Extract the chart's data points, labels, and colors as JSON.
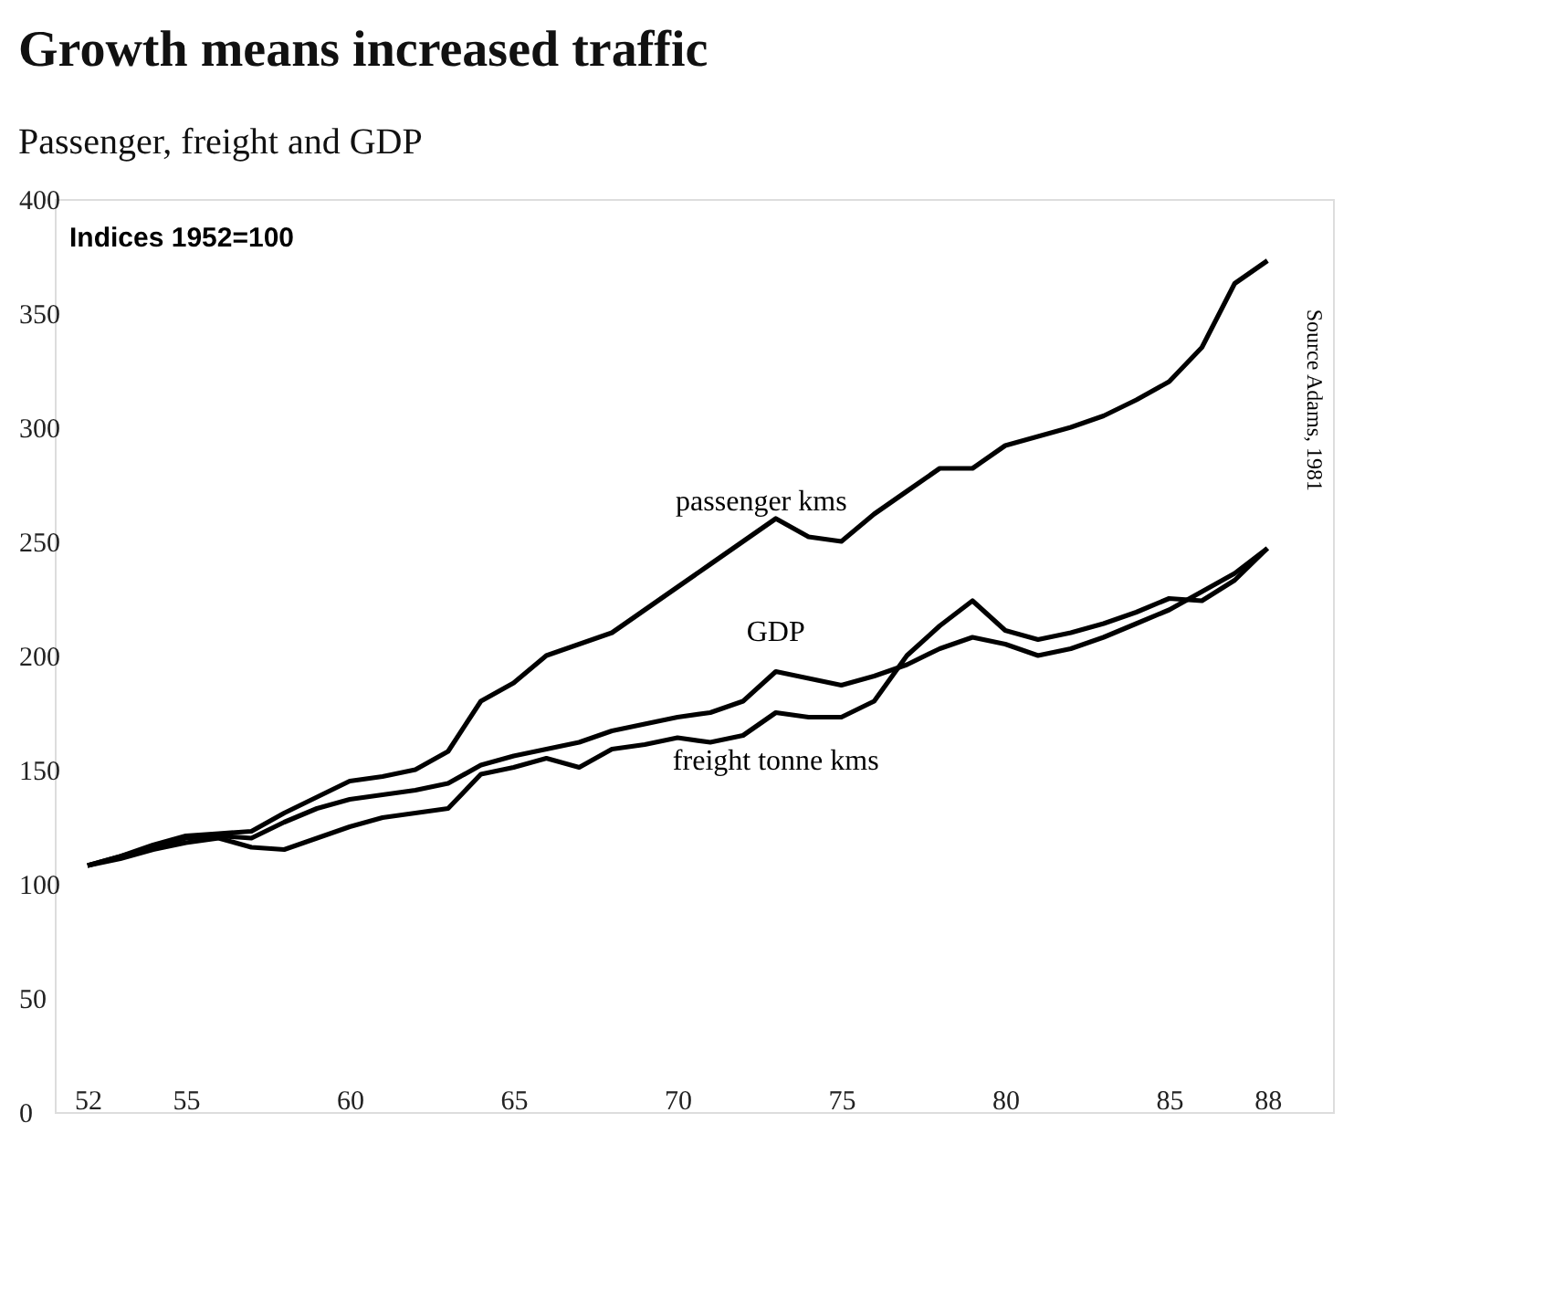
{
  "chart_data": {
    "type": "line",
    "title": "Growth means increased traffic",
    "subtitle": "Passenger, freight and GDP",
    "annotations": [
      "Indices 1952=100",
      "Source Adams, 1981"
    ],
    "x": [
      52,
      53,
      54,
      55,
      56,
      57,
      58,
      59,
      60,
      61,
      62,
      63,
      64,
      65,
      66,
      67,
      68,
      69,
      70,
      71,
      72,
      73,
      74,
      75,
      76,
      77,
      78,
      79,
      80,
      81,
      82,
      83,
      84,
      85,
      86,
      87,
      88
    ],
    "series": [
      {
        "name": "passenger kms",
        "color": "#000000",
        "values": [
          108,
          112,
          117,
          121,
          122,
          123,
          131,
          138,
          145,
          147,
          150,
          158,
          180,
          188,
          200,
          205,
          210,
          220,
          230,
          240,
          250,
          260,
          252,
          250,
          262,
          272,
          282,
          282,
          292,
          296,
          300,
          305,
          312,
          320,
          335,
          363,
          373
        ]
      },
      {
        "name": "GDP",
        "color": "#000000",
        "values": [
          108,
          112,
          116,
          120,
          121,
          120,
          127,
          133,
          137,
          139,
          141,
          144,
          152,
          156,
          159,
          162,
          167,
          170,
          173,
          175,
          180,
          193,
          190,
          187,
          191,
          196,
          203,
          208,
          205,
          200,
          203,
          208,
          214,
          220,
          228,
          236,
          247
        ]
      },
      {
        "name": "freight tonne kms",
        "color": "#000000",
        "values": [
          108,
          111,
          115,
          118,
          120,
          116,
          115,
          120,
          125,
          129,
          131,
          133,
          148,
          151,
          155,
          151,
          159,
          161,
          164,
          162,
          165,
          175,
          173,
          173,
          180,
          200,
          213,
          224,
          211,
          207,
          210,
          214,
          219,
          225,
          224,
          233,
          247
        ]
      }
    ],
    "xlim": [
      51,
      90
    ],
    "xticks": [
      52,
      55,
      60,
      65,
      70,
      75,
      80,
      85,
      88
    ],
    "ylim": [
      0,
      400
    ],
    "yticks": [
      0,
      50,
      100,
      150,
      200,
      250,
      300,
      350,
      400
    ],
    "grid": false,
    "legend": false,
    "marker": "none",
    "line_style": "solid"
  }
}
